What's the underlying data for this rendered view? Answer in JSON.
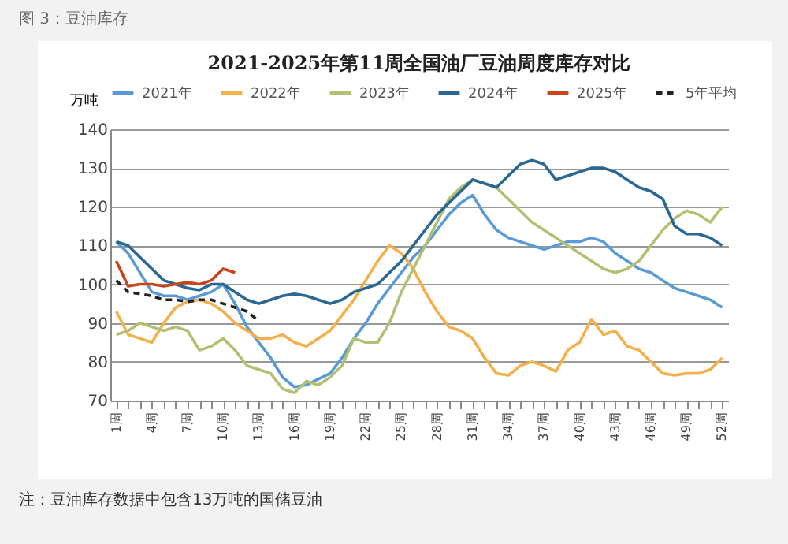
{
  "chart_data": {
    "type": "line",
    "title": "2021-2025年第11周全国油厂豆油周度库存对比",
    "ylabel": "万吨",
    "annotations": [
      "图 3：豆油库存",
      "注：豆油库存数据中包含13万吨的国储豆油"
    ],
    "categories": [
      "1周",
      null,
      null,
      "4周",
      null,
      null,
      "7周",
      null,
      null,
      "10周",
      null,
      null,
      "13周",
      null,
      null,
      "16周",
      null,
      null,
      "19周",
      null,
      null,
      "22周",
      null,
      null,
      "25周",
      null,
      null,
      "28周",
      null,
      null,
      "31周",
      null,
      null,
      "34周",
      null,
      null,
      "37周",
      null,
      null,
      "40周",
      null,
      null,
      "43周",
      null,
      null,
      "46周",
      null,
      null,
      "49周",
      null,
      null,
      "52周"
    ],
    "ylim": [
      70,
      140
    ],
    "yticks": [
      70,
      80,
      90,
      100,
      110,
      120,
      130,
      140
    ],
    "grid": "y",
    "legend": "top",
    "series": [
      {
        "name": "2021年",
        "color": "#5b9bd5",
        "values": [
          111,
          108,
          103,
          98,
          97,
          97,
          96,
          97,
          98,
          100,
          95,
          89,
          85,
          81,
          76,
          73.5,
          74,
          75.5,
          77,
          81,
          86,
          90,
          95,
          99,
          103,
          107,
          110,
          114,
          118,
          121,
          123,
          118,
          114,
          112,
          111,
          110,
          109,
          110,
          111,
          111,
          112,
          111,
          108,
          106,
          104,
          103,
          101,
          99,
          98,
          97,
          96,
          94
        ]
      },
      {
        "name": "2022年",
        "color": "#f5b04c",
        "values": [
          93,
          87,
          86,
          85,
          90,
          94,
          95.5,
          96,
          95,
          93,
          90,
          88,
          86,
          86,
          87,
          85,
          84,
          86,
          88,
          92,
          96,
          101,
          106,
          110,
          108,
          104,
          98,
          93,
          89,
          88,
          86,
          81,
          77,
          76.5,
          79,
          80,
          79,
          77.5,
          83,
          85,
          91,
          87,
          88,
          84,
          83,
          80,
          77,
          76.5,
          77,
          77,
          78,
          81
        ]
      },
      {
        "name": "2023年",
        "color": "#b4bf74",
        "values": [
          87,
          88,
          90,
          89,
          88,
          89,
          88,
          83,
          84,
          86,
          83,
          79,
          78,
          77,
          73,
          72,
          75,
          74,
          76,
          79,
          86,
          85,
          85,
          90,
          98,
          104,
          110,
          116,
          122,
          125,
          127,
          126,
          125,
          122,
          119,
          116,
          114,
          112,
          110,
          108,
          106,
          104,
          103,
          104,
          106,
          110,
          114,
          117,
          119,
          118,
          116,
          120
        ]
      },
      {
        "name": "2024年",
        "color": "#2a6893",
        "values": [
          111,
          110,
          107,
          104,
          101,
          100,
          99,
          98.5,
          100,
          100,
          98,
          96,
          95,
          96,
          97,
          97.5,
          97,
          96,
          95,
          96,
          98,
          99,
          100,
          103,
          106,
          110,
          114,
          118,
          121,
          124,
          127,
          126,
          125,
          128,
          131,
          132,
          131,
          127,
          128,
          129,
          130,
          130,
          129,
          127,
          125,
          124,
          122,
          115,
          113,
          113,
          112,
          110
        ]
      },
      {
        "name": "2025年",
        "color": "#c8451c",
        "values": [
          106,
          99.5,
          100,
          100,
          99.5,
          100,
          100.5,
          100,
          101,
          104,
          103,
          null,
          null,
          null,
          null,
          null,
          null,
          null,
          null,
          null,
          null,
          null,
          null,
          null,
          null,
          null,
          null,
          null,
          null,
          null,
          null,
          null,
          null,
          null,
          null,
          null,
          null,
          null,
          null,
          null,
          null,
          null,
          null,
          null,
          null,
          null,
          null,
          null,
          null,
          null,
          null,
          null
        ]
      },
      {
        "name": "5年平均",
        "color": "#222222",
        "line_style": "dashed",
        "values": [
          101,
          98,
          97.5,
          97,
          96,
          96,
          95.5,
          96,
          96,
          95,
          94,
          93,
          90.5,
          null,
          null,
          null,
          null,
          null,
          null,
          null,
          null,
          null,
          null,
          null,
          null,
          null,
          null,
          null,
          null,
          null,
          null,
          null,
          null,
          null,
          null,
          null,
          null,
          null,
          null,
          null,
          null,
          null,
          null,
          null,
          null,
          null,
          null,
          null,
          null,
          null,
          null,
          null
        ]
      }
    ]
  }
}
